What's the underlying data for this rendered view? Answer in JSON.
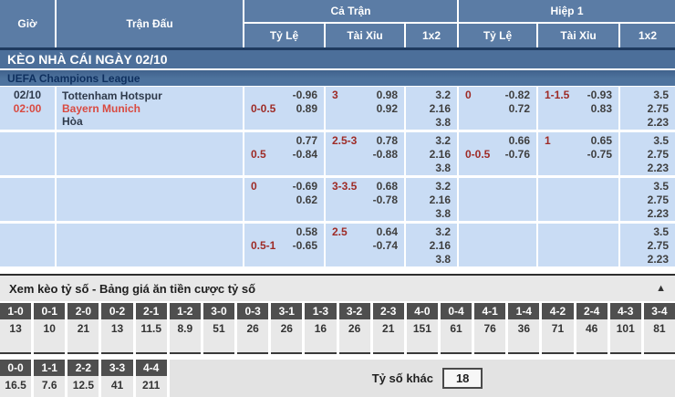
{
  "header": {
    "time": "Giờ",
    "match": "Trận Đấu",
    "full_match": "Cả Trận",
    "first_half": "Hiệp 1",
    "handicap": "Tỷ Lệ",
    "over_under": "Tài Xỉu",
    "one_x_two": "1x2"
  },
  "banner": "KÈO NHÀ CÁI NGÀY 02/10",
  "league": "UEFA Champions League",
  "match": {
    "date": "02/10",
    "time": "02:00",
    "home": "Tottenham Hotspur",
    "away": "Bayern Munich",
    "draw": "Hòa"
  },
  "odds_rows": [
    {
      "ft_hc": {
        "l1": "",
        "v1": "-0.96",
        "l2": "0-0.5",
        "v2": "0.89"
      },
      "ft_ou": {
        "l1": "3",
        "v1": "0.98",
        "l2": "",
        "v2": "0.92"
      },
      "ft_1x2": [
        "3.2",
        "2.16",
        "3.8"
      ],
      "h1_hc": {
        "l1": "0",
        "v1": "-0.82",
        "l2": "",
        "v2": "0.72"
      },
      "h1_ou": {
        "l1": "1-1.5",
        "v1": "-0.93",
        "l2": "",
        "v2": "0.83"
      },
      "h1_1x2": [
        "3.5",
        "2.75",
        "2.23"
      ]
    },
    {
      "ft_hc": {
        "l1": "",
        "v1": "0.77",
        "l2": "0.5",
        "v2": "-0.84"
      },
      "ft_ou": {
        "l1": "2.5-3",
        "v1": "0.78",
        "l2": "",
        "v2": "-0.88"
      },
      "ft_1x2": [
        "3.2",
        "2.16",
        "3.8"
      ],
      "h1_hc": {
        "l1": "",
        "v1": "0.66",
        "l2": "0-0.5",
        "v2": "-0.76"
      },
      "h1_ou": {
        "l1": "1",
        "v1": "0.65",
        "l2": "",
        "v2": "-0.75"
      },
      "h1_1x2": [
        "3.5",
        "2.75",
        "2.23"
      ]
    },
    {
      "ft_hc": {
        "l1": "0",
        "v1": "-0.69",
        "l2": "",
        "v2": "0.62"
      },
      "ft_ou": {
        "l1": "3-3.5",
        "v1": "0.68",
        "l2": "",
        "v2": "-0.78"
      },
      "ft_1x2": [
        "3.2",
        "2.16",
        "3.8"
      ],
      "h1_hc": {
        "l1": "",
        "v1": "",
        "l2": "",
        "v2": ""
      },
      "h1_ou": {
        "l1": "",
        "v1": "",
        "l2": "",
        "v2": ""
      },
      "h1_1x2": [
        "3.5",
        "2.75",
        "2.23"
      ]
    },
    {
      "ft_hc": {
        "l1": "",
        "v1": "0.58",
        "l2": "0.5-1",
        "v2": "-0.65"
      },
      "ft_ou": {
        "l1": "2.5",
        "v1": "0.64",
        "l2": "",
        "v2": "-0.74"
      },
      "ft_1x2": [
        "3.2",
        "2.16",
        "3.8"
      ],
      "h1_hc": {
        "l1": "",
        "v1": "",
        "l2": "",
        "v2": ""
      },
      "h1_ou": {
        "l1": "",
        "v1": "",
        "l2": "",
        "v2": ""
      },
      "h1_1x2": [
        "3.5",
        "2.75",
        "2.23"
      ]
    }
  ],
  "score_section": {
    "title": "Xem kèo tỷ số - Bảng giá ăn tiền cược tỷ số",
    "collapse_icon": "▲",
    "row1": [
      {
        "score": "1-0",
        "odds": "13"
      },
      {
        "score": "0-1",
        "odds": "10"
      },
      {
        "score": "2-0",
        "odds": "21"
      },
      {
        "score": "0-2",
        "odds": "13"
      },
      {
        "score": "2-1",
        "odds": "11.5"
      },
      {
        "score": "1-2",
        "odds": "8.9"
      },
      {
        "score": "3-0",
        "odds": "51"
      },
      {
        "score": "0-3",
        "odds": "26"
      },
      {
        "score": "3-1",
        "odds": "26"
      },
      {
        "score": "1-3",
        "odds": "16"
      },
      {
        "score": "3-2",
        "odds": "26"
      },
      {
        "score": "2-3",
        "odds": "21"
      },
      {
        "score": "4-0",
        "odds": "151"
      },
      {
        "score": "0-4",
        "odds": "61"
      },
      {
        "score": "4-1",
        "odds": "76"
      },
      {
        "score": "1-4",
        "odds": "36"
      },
      {
        "score": "4-2",
        "odds": "71"
      },
      {
        "score": "2-4",
        "odds": "46"
      },
      {
        "score": "4-3",
        "odds": "101"
      },
      {
        "score": "3-4",
        "odds": "81"
      }
    ],
    "row2": [
      {
        "score": "0-0",
        "odds": "16.5"
      },
      {
        "score": "1-1",
        "odds": "7.6"
      },
      {
        "score": "2-2",
        "odds": "12.5"
      },
      {
        "score": "3-3",
        "odds": "41"
      },
      {
        "score": "4-4",
        "odds": "211"
      }
    ],
    "other_label": "Tỷ số khác",
    "other_value": "18"
  },
  "colors": {
    "header_blue": "#5b7ca5",
    "banner_blue": "#4c6f9a",
    "row_blue": "#c9dcf4",
    "accent_red": "#d94a41",
    "handicap_red": "#9e2b26",
    "score_header_gray": "#4f4f4f"
  }
}
